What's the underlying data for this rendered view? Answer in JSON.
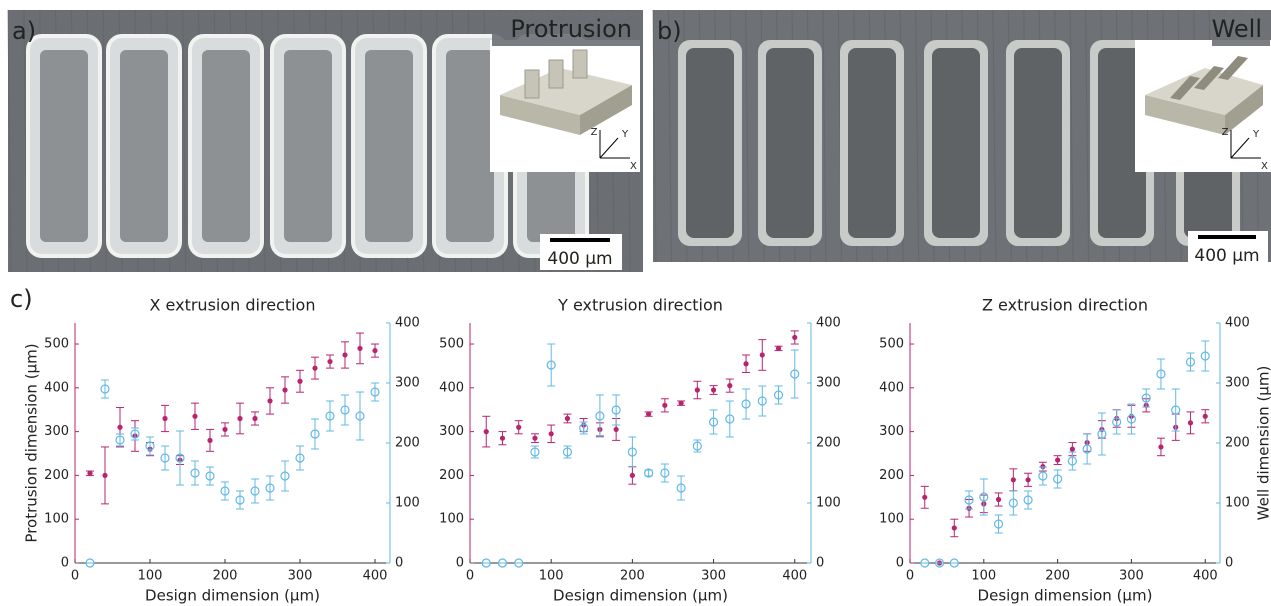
{
  "photos": [
    {
      "label": "a)",
      "title": "Protrusion",
      "scale_bar": "400 µm",
      "axes": [
        "Z",
        "Y",
        "X"
      ]
    },
    {
      "label": "b)",
      "title": "Well",
      "scale_bar": "400 µm",
      "axes": [
        "Z",
        "Y",
        "X"
      ]
    }
  ],
  "panel_c_label": "c)",
  "chart_data": [
    {
      "type": "scatter",
      "title": "X extrusion direction",
      "xlabel": "Design dimension (µm)",
      "ylabel": "Protrusion dimension (µm)",
      "x": [
        20,
        40,
        60,
        80,
        100,
        120,
        140,
        160,
        180,
        200,
        220,
        240,
        260,
        280,
        300,
        320,
        340,
        360,
        380,
        400
      ],
      "xlim": [
        0,
        420
      ],
      "ylim": [
        0,
        548
      ],
      "y2lim": [
        0,
        400
      ],
      "xticks": [
        0,
        100,
        200,
        300,
        400
      ],
      "yticks": [
        0,
        100,
        200,
        300,
        400,
        500
      ],
      "y2ticks": [
        0,
        100,
        200,
        300,
        400
      ],
      "series": [
        {
          "color": "#b8256f",
          "marker": "dot",
          "values": [
            205,
            200,
            310,
            290,
            260,
            330,
            235,
            335,
            280,
            305,
            330,
            330,
            370,
            395,
            415,
            445,
            460,
            475,
            490,
            485
          ],
          "errors": [
            5,
            65,
            45,
            35,
            15,
            30,
            10,
            30,
            25,
            15,
            35,
            15,
            30,
            30,
            25,
            25,
            15,
            30,
            35,
            15
          ]
        },
        {
          "color": "#62b8e6",
          "marker": "circle",
          "axis": "y2",
          "values": [
            0,
            290,
            205,
            215,
            195,
            175,
            175,
            150,
            145,
            120,
            105,
            120,
            125,
            145,
            175,
            215,
            245,
            255,
            245,
            285
          ],
          "errors": [
            0,
            15,
            10,
            10,
            15,
            20,
            45,
            20,
            15,
            15,
            15,
            20,
            20,
            25,
            20,
            25,
            25,
            25,
            40,
            15
          ]
        }
      ]
    },
    {
      "type": "scatter",
      "title": "Y extrusion direction",
      "xlabel": "Design dimension (µm)",
      "x": [
        20,
        40,
        60,
        80,
        100,
        120,
        140,
        160,
        180,
        200,
        220,
        240,
        260,
        280,
        300,
        320,
        340,
        360,
        380,
        400
      ],
      "xlim": [
        0,
        420
      ],
      "ylim": [
        0,
        548
      ],
      "y2lim": [
        0,
        400
      ],
      "xticks": [
        0,
        100,
        200,
        300,
        400
      ],
      "yticks": [
        0,
        100,
        200,
        300,
        400,
        500
      ],
      "y2ticks": [
        0,
        100,
        200,
        300,
        400
      ],
      "series": [
        {
          "color": "#b8256f",
          "marker": "dot",
          "values": [
            300,
            285,
            310,
            285,
            295,
            330,
            315,
            305,
            305,
            200,
            340,
            360,
            365,
            395,
            395,
            405,
            455,
            475,
            490,
            515
          ],
          "errors": [
            35,
            15,
            15,
            10,
            20,
            10,
            15,
            15,
            25,
            20,
            5,
            15,
            5,
            20,
            10,
            15,
            20,
            35,
            5,
            15
          ]
        },
        {
          "color": "#62b8e6",
          "marker": "circle",
          "axis": "y2",
          "values": [
            0,
            0,
            0,
            185,
            330,
            185,
            225,
            245,
            255,
            185,
            150,
            150,
            125,
            195,
            235,
            240,
            265,
            270,
            280,
            315
          ],
          "errors": [
            0,
            0,
            0,
            10,
            35,
            10,
            10,
            35,
            25,
            25,
            5,
            15,
            20,
            10,
            20,
            30,
            25,
            25,
            15,
            40
          ]
        }
      ]
    },
    {
      "type": "scatter",
      "title": "Z extrusion direction",
      "xlabel": "Design dimension (µm)",
      "y2label": "Well dimension (µm)",
      "x": [
        20,
        40,
        60,
        80,
        100,
        120,
        140,
        160,
        180,
        200,
        220,
        240,
        260,
        280,
        300,
        320,
        340,
        360,
        380,
        400
      ],
      "xlim": [
        0,
        420
      ],
      "ylim": [
        0,
        548
      ],
      "y2lim": [
        0,
        400
      ],
      "xticks": [
        0,
        100,
        200,
        300,
        400
      ],
      "yticks": [
        0,
        100,
        200,
        300,
        400,
        500
      ],
      "y2ticks": [
        0,
        100,
        200,
        300,
        400
      ],
      "series": [
        {
          "color": "#b8256f",
          "marker": "dot",
          "values": [
            150,
            0,
            80,
            125,
            135,
            145,
            190,
            190,
            220,
            235,
            260,
            275,
            305,
            330,
            335,
            360,
            265,
            310,
            320,
            335
          ],
          "errors": [
            25,
            0,
            20,
            20,
            20,
            15,
            25,
            15,
            10,
            10,
            15,
            20,
            20,
            20,
            25,
            15,
            20,
            30,
            25,
            15
          ]
        },
        {
          "color": "#62b8e6",
          "marker": "circle",
          "axis": "y2",
          "values": [
            0,
            0,
            0,
            105,
            110,
            65,
            100,
            105,
            145,
            140,
            170,
            190,
            215,
            235,
            240,
            275,
            315,
            255,
            335,
            345
          ],
          "errors": [
            0,
            0,
            0,
            15,
            30,
            15,
            20,
            15,
            15,
            15,
            15,
            25,
            35,
            20,
            25,
            15,
            25,
            35,
            15,
            25
          ]
        }
      ]
    }
  ]
}
